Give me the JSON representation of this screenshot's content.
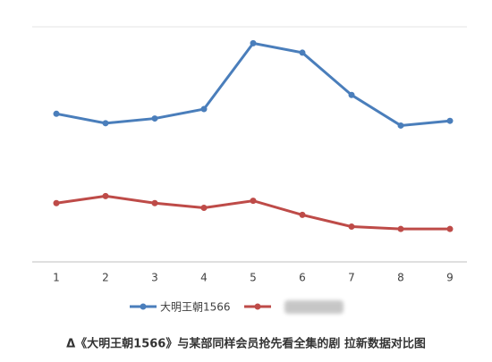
{
  "chart_data": {
    "type": "line",
    "categories": [
      "1",
      "2",
      "3",
      "4",
      "5",
      "6",
      "7",
      "8",
      "9"
    ],
    "series": [
      {
        "name": "大明王朝1566",
        "color": "#4a7ebb",
        "values": [
          63,
          59,
          61,
          65,
          93,
          89,
          71,
          58,
          60
        ]
      },
      {
        "color": "#be4b48",
        "values": [
          25,
          28,
          25,
          23,
          26,
          20,
          15,
          14,
          14
        ]
      }
    ],
    "ylim": [
      0,
      100
    ],
    "caption": "Δ《大明王朝1566》与某部同样会员抢先看全集的剧 拉新数据对比图"
  }
}
